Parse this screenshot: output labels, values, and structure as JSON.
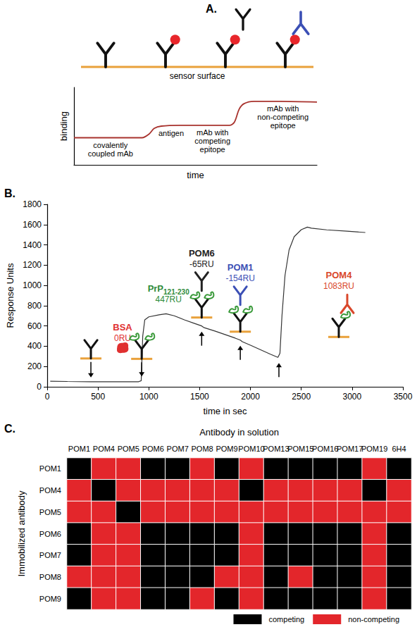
{
  "chart_data": [
    {
      "panel": "A.",
      "type": "line",
      "surface_label": "sensor surface",
      "xlabel": "time",
      "ylabel": "binding",
      "x": [
        0,
        28,
        31,
        33,
        36,
        45,
        55,
        64,
        66,
        68,
        70,
        74,
        85,
        100
      ],
      "values": [
        35,
        35,
        40,
        47,
        50,
        51,
        51,
        51,
        55,
        72,
        79,
        82,
        82,
        81
      ],
      "xlim": [
        0,
        100
      ],
      "ylim": [
        0,
        100
      ],
      "xticks": [],
      "yticks": [],
      "tick_labels": false,
      "grid": false,
      "color": "#a8322d",
      "annotations": [
        "covalently coupled mAb",
        "antigen",
        "mAb with competing epitope",
        "mAb with non-competing epitope"
      ]
    },
    {
      "panel": "B.",
      "type": "line",
      "xlabel": "time in sec",
      "ylabel": "Response Units",
      "x": [
        30,
        200,
        430,
        600,
        900,
        925,
        940,
        960,
        1000,
        1100,
        1170,
        1250,
        1350,
        1450,
        1520,
        1540,
        1650,
        1750,
        1850,
        1900,
        1920,
        2000,
        2100,
        2200,
        2270,
        2290,
        2310,
        2340,
        2380,
        2430,
        2500,
        2560,
        2600,
        2750,
        2950,
        3130
      ],
      "values": [
        55,
        52,
        50,
        50,
        50,
        60,
        500,
        660,
        690,
        710,
        720,
        700,
        660,
        625,
        600,
        585,
        550,
        515,
        480,
        460,
        445,
        410,
        365,
        320,
        290,
        330,
        700,
        1100,
        1350,
        1480,
        1550,
        1575,
        1565,
        1548,
        1535,
        1522
      ],
      "xlim": [
        0,
        3500
      ],
      "ylim": [
        0,
        1800
      ],
      "xticks": [
        0,
        500,
        1000,
        1500,
        2000,
        2500,
        3000,
        3500
      ],
      "yticks": [
        0,
        200,
        400,
        600,
        800,
        1000,
        1200,
        1400,
        1600,
        1800
      ],
      "grid": false,
      "color": "#333333",
      "injections": [
        {
          "name": "BSA",
          "change": "0RU",
          "time": 430,
          "color": "#e03030"
        },
        {
          "name": "PrP",
          "subscript": "121-230",
          "change": "447RU",
          "time": 930,
          "color": "#2e8b3a"
        },
        {
          "name": "POM6",
          "change": "-65RU",
          "time": 1520,
          "color": "#222222"
        },
        {
          "name": "POM1",
          "change": "-154RU",
          "time": 1900,
          "color": "#3b4fb5"
        },
        {
          "name": "POM4",
          "change": "1083RU",
          "time": 2280,
          "color": "#d9472b"
        }
      ]
    },
    {
      "panel": "C.",
      "type": "heatmap",
      "xlabel": "Antibody in solution",
      "ylabel": "Immobilized antibody",
      "x_categories": [
        "POM1",
        "POM4",
        "POM5",
        "POM6",
        "POM7",
        "POM8",
        "POM9",
        "POM10",
        "POM13",
        "POM15",
        "POM16",
        "POM17",
        "POM19",
        "6H4"
      ],
      "y_categories": [
        "POM1",
        "POM4",
        "POM5",
        "POM6",
        "POM7",
        "POM8",
        "POM9"
      ],
      "cells": [
        [
          0,
          1,
          1,
          0,
          0,
          1,
          0,
          1,
          0,
          0,
          0,
          0,
          1,
          0
        ],
        [
          1,
          0,
          1,
          1,
          1,
          1,
          1,
          0,
          1,
          1,
          1,
          1,
          0,
          1
        ],
        [
          1,
          1,
          0,
          1,
          1,
          1,
          1,
          1,
          1,
          1,
          1,
          1,
          1,
          1
        ],
        [
          0,
          1,
          1,
          0,
          0,
          0,
          0,
          1,
          0,
          0,
          0,
          0,
          1,
          0
        ],
        [
          0,
          1,
          1,
          0,
          0,
          0,
          0,
          1,
          0,
          0,
          0,
          0,
          1,
          0
        ],
        [
          1,
          1,
          1,
          0,
          0,
          0,
          1,
          1,
          0,
          1,
          0,
          0,
          1,
          0
        ],
        [
          0,
          1,
          1,
          0,
          0,
          1,
          0,
          1,
          0,
          0,
          0,
          0,
          1,
          0
        ]
      ],
      "legend": "lower right",
      "legend_items": [
        {
          "label": "non-competing",
          "value": 1,
          "color": "#e3262b"
        },
        {
          "label": "competing",
          "value": 0,
          "color": "#000000"
        }
      ]
    }
  ]
}
